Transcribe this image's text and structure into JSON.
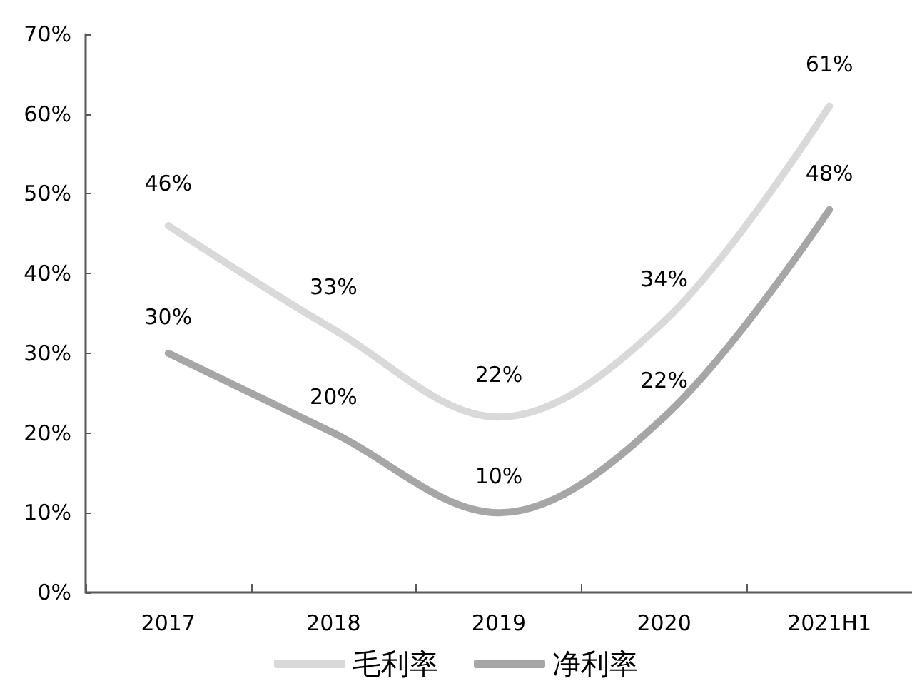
{
  "chart_data": {
    "type": "line",
    "categories": [
      "2017",
      "2018",
      "2019",
      "2020",
      "2021H1"
    ],
    "series": [
      {
        "name": "毛利率",
        "color": "#d9d9d9",
        "values": [
          46,
          33,
          22,
          34,
          61
        ],
        "value_labels": [
          "46%",
          "33%",
          "22%",
          "34%",
          "61%"
        ]
      },
      {
        "name": "净利率",
        "color": "#a6a6a6",
        "values": [
          30,
          20,
          10,
          22,
          48
        ],
        "value_labels": [
          "30%",
          "20%",
          "10%",
          "22%",
          "48%"
        ]
      }
    ],
    "ylim": [
      0,
      70
    ],
    "yticks": [
      {
        "value": 0,
        "label": "0%"
      },
      {
        "value": 10,
        "label": "10%"
      },
      {
        "value": 20,
        "label": "20%"
      },
      {
        "value": 30,
        "label": "30%"
      },
      {
        "value": 40,
        "label": "40%"
      },
      {
        "value": 50,
        "label": "50%"
      },
      {
        "value": 60,
        "label": "60%"
      },
      {
        "value": 70,
        "label": "70%"
      }
    ],
    "legend": "bottom"
  }
}
